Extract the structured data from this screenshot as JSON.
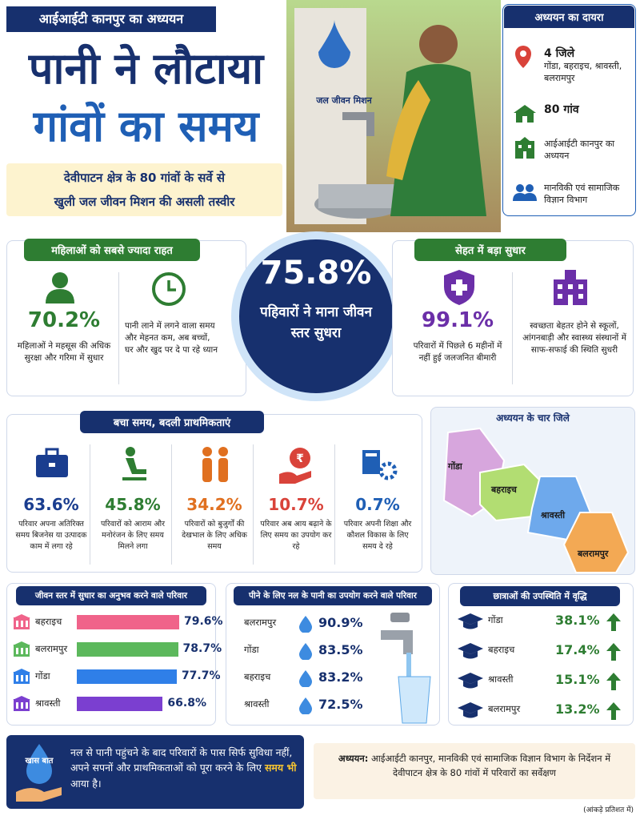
{
  "header": {
    "tag": "आईआईटी कानपुर का अध्ययन",
    "title_line1": "पानी ने लौटाया",
    "title_line2": "गांवों का समय",
    "subtitle_line1": "देवीपाटन क्षेत्र के 80 गांवों के सर्वे से",
    "subtitle_line2": "खुली जल जीवन मिशन की असली तस्वीर"
  },
  "photo": {
    "logo_text": "जल जीवन मिशन"
  },
  "scope": {
    "title": "अध्ययन का दायरा",
    "items": [
      {
        "title": "4 जिले",
        "text": "गोंडा, बहराइच, श्रावस्ती, बलरामपुर"
      },
      {
        "title": "80 गांव"
      },
      {
        "text": "आईआईटी कानपुर का अध्ययन"
      },
      {
        "text": "मानविकी एवं सामाजिक विज्ञान विभाग"
      }
    ]
  },
  "women": {
    "title": "महिलाओं को सबसे ज्यादा राहत",
    "stat": "70.2%",
    "stat_text": "महिलाओं ने महसूस की अधिक सुरक्षा और गरिमा में सुधार",
    "note": "पानी लाने में लगने वाला समय और मेहनत कम, अब बच्चों, घर और खुद पर दे पा रहे ध्यान"
  },
  "center": {
    "stat": "75.8%",
    "text": "पहिवारों ने माना जीवन स्तर सुधरा"
  },
  "health": {
    "title": "सेहत में बड़ा सुधार",
    "stat": "99.1%",
    "stat_text": "परिवारों में पिछले 6 महीनों में नहीं हुई जलजनित बीमारी",
    "note": "स्वच्छता बेहतर होने से स्कूलों, आंगनबाड़ी और स्वास्थ्य संस्थानों में साफ-सफाई की स्थिति सुधरी"
  },
  "time": {
    "title": "बचा समय, बदली प्राथमिकताएं",
    "items": [
      {
        "stat": "63.6%",
        "text": "परिवार अपना अतिरिक्त समय बिजनेस या उत्पादक काम में लगा रहे"
      },
      {
        "stat": "45.8%",
        "text": "परिवारों को आराम और मनोरंजन के लिए समय मिलने लगा"
      },
      {
        "stat": "34.2%",
        "text": "परिवारों को बुजुर्गों की देखभाल के लिए अधिक समय"
      },
      {
        "stat": "10.7%",
        "text": "परिवार अब आय बढ़ाने के लिए समय का उपयोग कर रहे"
      },
      {
        "stat": "0.7%",
        "text": "परिवार अपनी शिक्षा और कौशल विकास के लिए समय दे रहे"
      }
    ]
  },
  "map": {
    "title": "अध्ययन के चार जिले",
    "districts": [
      "गोंडा",
      "बहराइच",
      "श्रावस्ती",
      "बलरामपुर"
    ]
  },
  "living_standard": {
    "title": "जीवन स्तर में सुधार का अनुभव करने वाले परिवार",
    "categories": [
      "बहराइच",
      "बलरामपुर",
      "गोंडा",
      "श्रावस्ती"
    ],
    "values": [
      79.6,
      78.7,
      77.7,
      66.8
    ],
    "value_labels": [
      "79.6%",
      "78.7%",
      "77.7%",
      "66.8%"
    ],
    "colors": [
      "#f0638a",
      "#5cb85c",
      "#2f7fe8",
      "#7b3fd0"
    ]
  },
  "tap_water": {
    "title": "पीने के लिए नल के पानी का उपयोग करने वाले परिवार",
    "categories": [
      "बलरामपुर",
      "गोंडा",
      "बहराइच",
      "श्रावस्ती"
    ],
    "values": [
      "90.9%",
      "83.5%",
      "83.2%",
      "72.5%"
    ]
  },
  "attendance": {
    "title": "छात्राओं की उपस्थिति में वृद्धि",
    "categories": [
      "गोंडा",
      "बहराइच",
      "श्रावस्ती",
      "बलरामपुर"
    ],
    "values": [
      "38.1%",
      "17.4%",
      "15.1%",
      "13.2%"
    ]
  },
  "footer": {
    "logo": "खास बात",
    "quote": "नल से पानी पहुंचने के बाद परिवारों के पास सिर्फ सुविधा नहीं, अपने सपनों और प्राथमिकताओं को पूरा करने के लिए",
    "quote_highlight": "समय भी",
    "quote_end": "आया है।",
    "source_label": "अध्ययन:",
    "source": "आईआईटी कानपुर, मानविकी एवं सामाजिक विज्ञान विभाग के निर्देशन में देवीपाटन क्षेत्र के 80 गांवों में  परिवारों का सर्वेक्षण",
    "note": "(आंकड़े प्रतिशत में)"
  }
}
